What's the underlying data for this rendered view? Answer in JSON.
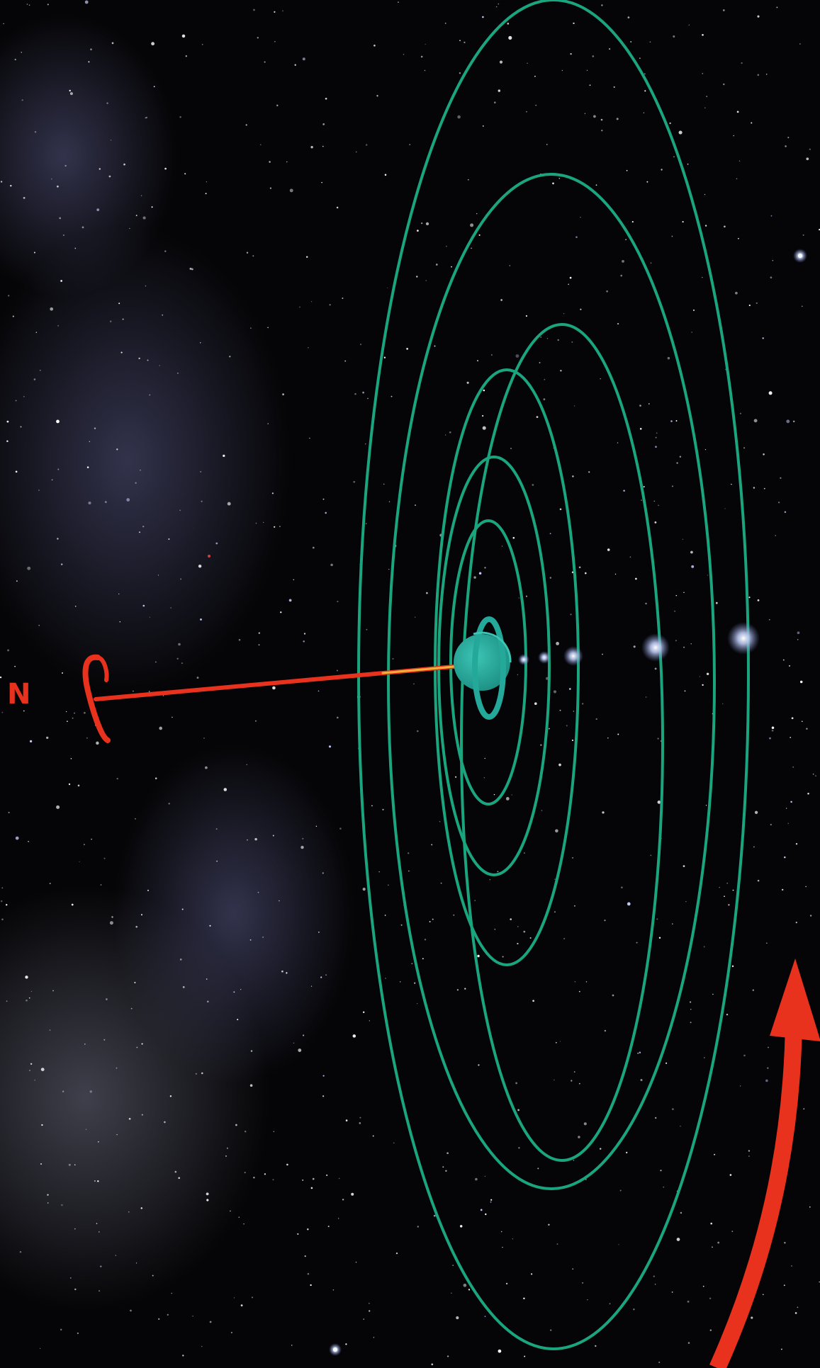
{
  "diagram": {
    "north_label": "N",
    "colors": {
      "background": "#050507",
      "orbit": "#1aa57f",
      "planet": "#23a89a",
      "axis": "#e8321e",
      "moon": "#b9c6ef",
      "nebula": "#5a5a8a"
    },
    "orbit_count": 6,
    "moon_count": 5,
    "icons": {
      "north_rotation": "rotation-arc-icon",
      "orbital_direction": "curved-arrow-icon"
    }
  }
}
